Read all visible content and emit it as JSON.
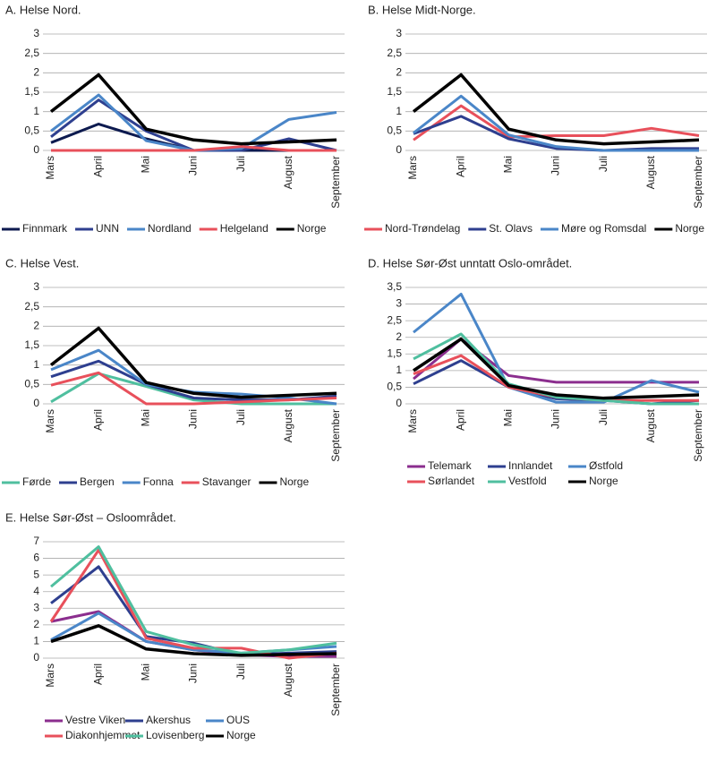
{
  "chart_data": [
    {
      "type": "line",
      "title": "A. Helse Nord.",
      "categories": [
        "Mars",
        "April",
        "Mai",
        "Juni",
        "Juli",
        "August",
        "September"
      ],
      "ylim": [
        0,
        3
      ],
      "yticks": [
        0,
        {
          "value": 0.5,
          "label": "0,5"
        },
        1,
        {
          "value": 1.5,
          "label": "1,5"
        },
        2,
        {
          "value": 2.5,
          "label": "2,5"
        },
        3
      ],
      "grid": true,
      "series": [
        {
          "name": "Finnmark",
          "color": "#0d1a4f",
          "values": [
            0.2,
            0.68,
            0.3,
            0,
            0,
            0,
            0
          ]
        },
        {
          "name": "UNN",
          "color": "#2e3f8f",
          "values": [
            0.35,
            1.3,
            0.5,
            0,
            0,
            0.3,
            0
          ]
        },
        {
          "name": "Nordland",
          "color": "#4a86c8",
          "values": [
            0.5,
            1.43,
            0.25,
            0,
            0.05,
            0.8,
            0.98
          ]
        },
        {
          "name": "Helgeland",
          "color": "#e8505b",
          "values": [
            0,
            0,
            0,
            0,
            0.1,
            0,
            0
          ]
        },
        {
          "name": "Norge",
          "color": "#000000",
          "values": [
            1.0,
            1.95,
            0.55,
            0.27,
            0.17,
            0.22,
            0.27
          ]
        }
      ]
    },
    {
      "type": "line",
      "title": "B. Helse Midt-Norge.",
      "categories": [
        "Mars",
        "April",
        "Mai",
        "Juni",
        "Juli",
        "August",
        "September"
      ],
      "ylim": [
        0,
        3
      ],
      "yticks": [
        0,
        {
          "value": 0.5,
          "label": "0,5"
        },
        1,
        {
          "value": 1.5,
          "label": "1,5"
        },
        2,
        {
          "value": 2.5,
          "label": "2,5"
        },
        3
      ],
      "grid": true,
      "series": [
        {
          "name": "Nord-Trøndelag",
          "color": "#e8505b",
          "values": [
            0.27,
            1.15,
            0.35,
            0.38,
            0.38,
            0.57,
            0.38
          ]
        },
        {
          "name": "St. Olavs",
          "color": "#2e3f8f",
          "values": [
            0.43,
            0.88,
            0.3,
            0.05,
            0,
            0.05,
            0.05
          ]
        },
        {
          "name": "Møre og Romsdal",
          "color": "#4a86c8",
          "values": [
            0.45,
            1.4,
            0.4,
            0.1,
            0,
            0,
            0
          ]
        },
        {
          "name": "Norge",
          "color": "#000000",
          "values": [
            1.0,
            1.95,
            0.55,
            0.27,
            0.17,
            0.22,
            0.27
          ]
        }
      ]
    },
    {
      "type": "line",
      "title": "C. Helse Vest.",
      "categories": [
        "Mars",
        "April",
        "Mai",
        "Juni",
        "Juli",
        "August",
        "September"
      ],
      "ylim": [
        0,
        3
      ],
      "yticks": [
        0,
        {
          "value": 0.5,
          "label": "0,5"
        },
        1,
        {
          "value": 1.5,
          "label": "1,5"
        },
        2,
        {
          "value": 2.5,
          "label": "2,5"
        },
        3
      ],
      "grid": true,
      "series": [
        {
          "name": "Førde",
          "color": "#4fbf9f",
          "values": [
            0.05,
            0.78,
            0.45,
            0.1,
            0,
            0,
            0
          ]
        },
        {
          "name": "Bergen",
          "color": "#2e3f8f",
          "values": [
            0.7,
            1.1,
            0.5,
            0.15,
            0.1,
            0.1,
            0.2
          ]
        },
        {
          "name": "Fonna",
          "color": "#4a86c8",
          "values": [
            0.88,
            1.38,
            0.5,
            0.3,
            0.25,
            0.15,
            0
          ]
        },
        {
          "name": "Stavanger",
          "color": "#e8505b",
          "values": [
            0.48,
            0.8,
            0,
            0,
            0.05,
            0.1,
            0.15
          ]
        },
        {
          "name": "Norge",
          "color": "#000000",
          "values": [
            1.0,
            1.95,
            0.55,
            0.27,
            0.17,
            0.22,
            0.27
          ]
        }
      ]
    },
    {
      "type": "line",
      "title": "D. Helse Sør-Øst unntatt Oslo-området.",
      "categories": [
        "Mars",
        "April",
        "Mai",
        "Juni",
        "Juli",
        "August",
        "September"
      ],
      "ylim": [
        0,
        3.5
      ],
      "yticks": [
        0,
        {
          "value": 0.5,
          "label": "0,5"
        },
        1,
        {
          "value": 1.5,
          "label": "1,5"
        },
        2,
        {
          "value": 2.5,
          "label": "2,5"
        },
        3,
        {
          "value": 3.5,
          "label": "3,5"
        }
      ],
      "grid": true,
      "series": [
        {
          "name": "Telemark",
          "color": "#8b2e8e",
          "values": [
            0.75,
            1.95,
            0.85,
            0.65,
            0.65,
            0.65,
            0.65
          ]
        },
        {
          "name": "Innlandet",
          "color": "#2e3f8f",
          "values": [
            0.6,
            1.3,
            0.5,
            0.15,
            0.1,
            0,
            0.1
          ]
        },
        {
          "name": "Østfold",
          "color": "#4a86c8",
          "values": [
            2.15,
            3.3,
            0.5,
            0.05,
            0.05,
            0.7,
            0.35
          ]
        },
        {
          "name": "Sørlandet",
          "color": "#e8505b",
          "values": [
            0.9,
            1.45,
            0.5,
            0.2,
            0.1,
            0.1,
            0.1
          ]
        },
        {
          "name": "Vestfold",
          "color": "#4fbf9f",
          "values": [
            1.35,
            2.1,
            0.6,
            0.2,
            0.1,
            0,
            0
          ]
        },
        {
          "name": "Norge",
          "color": "#000000",
          "values": [
            1.0,
            1.95,
            0.55,
            0.27,
            0.17,
            0.22,
            0.27
          ]
        }
      ]
    },
    {
      "type": "line",
      "title": "E. Helse Sør-Øst – Osloområdet.",
      "categories": [
        "Mars",
        "April",
        "Mai",
        "Juni",
        "Juli",
        "August",
        "September"
      ],
      "ylim": [
        0,
        7
      ],
      "yticks": [
        0,
        1,
        2,
        3,
        4,
        5,
        6,
        7
      ],
      "grid": true,
      "series": [
        {
          "name": "Vestre Viken",
          "color": "#8b2e8e",
          "values": [
            2.2,
            2.8,
            1.0,
            0.5,
            0.2,
            0.1,
            0.1
          ]
        },
        {
          "name": "Akershus",
          "color": "#2e3f8f",
          "values": [
            3.3,
            5.5,
            1.3,
            0.9,
            0.2,
            0.3,
            0.4
          ]
        },
        {
          "name": "OUS",
          "color": "#4a86c8",
          "values": [
            1.1,
            2.7,
            1.0,
            0.5,
            0.3,
            0.5,
            0.7
          ]
        },
        {
          "name": "Diakonhjemmet",
          "color": "#e8505b",
          "values": [
            2.2,
            6.5,
            1.2,
            0.6,
            0.6,
            0,
            0.3
          ]
        },
        {
          "name": "Lovisenberg",
          "color": "#4fbf9f",
          "values": [
            4.3,
            6.7,
            1.6,
            0.8,
            0.3,
            0.5,
            0.9
          ]
        },
        {
          "name": "Norge",
          "color": "#000000",
          "values": [
            1.0,
            1.95,
            0.55,
            0.27,
            0.17,
            0.22,
            0.27
          ]
        }
      ]
    }
  ]
}
